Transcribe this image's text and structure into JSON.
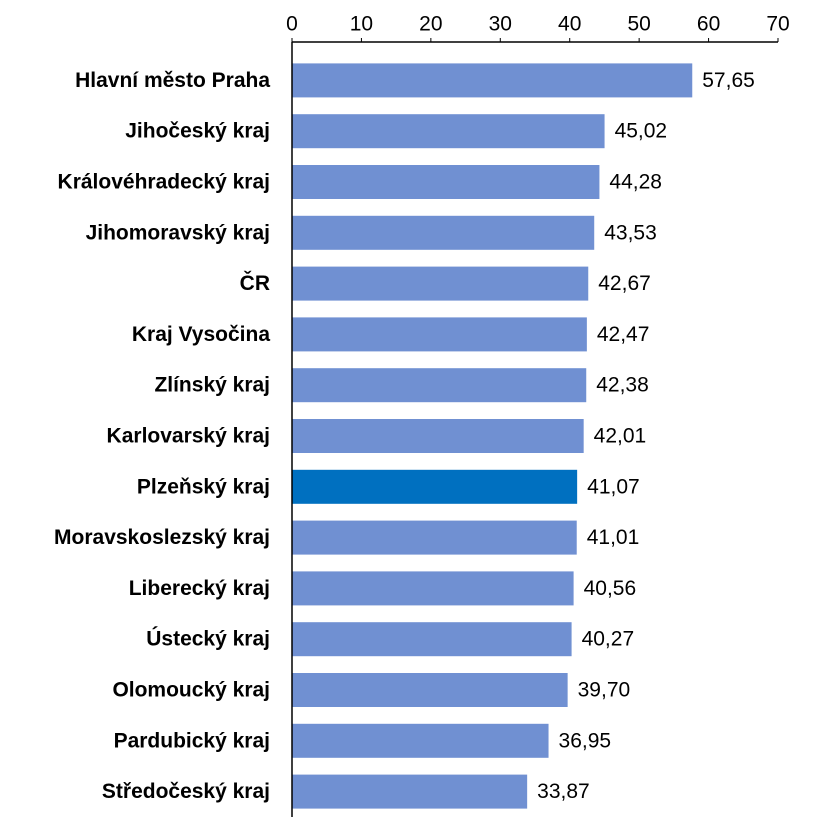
{
  "chart_data": {
    "type": "hbar",
    "categories": [
      "Hlavní město Praha",
      "Jihočeský kraj",
      "Královéhradecký kraj",
      "Jihomoravský kraj",
      "ČR",
      "Kraj Vysočina",
      "Zlínský kraj",
      "Karlovarský kraj",
      "Plzeňský kraj",
      "Moravskoslezský kraj",
      "Liberecký kraj",
      "Ústecký kraj",
      "Olomoucký kraj",
      "Pardubický kraj",
      "Středočeský kraj"
    ],
    "values": [
      57.65,
      45.02,
      44.28,
      43.53,
      42.67,
      42.47,
      42.38,
      42.01,
      41.07,
      41.01,
      40.56,
      40.27,
      39.7,
      36.95,
      33.87
    ],
    "value_labels": [
      "57,65",
      "45,02",
      "44,28",
      "43,53",
      "42,67",
      "42,47",
      "42,38",
      "42,01",
      "41,07",
      "41,01",
      "40,56",
      "40,27",
      "39,70",
      "36,95",
      "33,87"
    ],
    "colors": [
      "#7090d2",
      "#7090d2",
      "#7090d2",
      "#7090d2",
      "#7090d2",
      "#7090d2",
      "#7090d2",
      "#7090d2",
      "#0070c0",
      "#7090d2",
      "#7090d2",
      "#7090d2",
      "#7090d2",
      "#7090d2",
      "#7090d2"
    ],
    "xlim": [
      0,
      70
    ],
    "xticks": [
      0,
      10,
      20,
      30,
      40,
      50,
      60,
      70
    ],
    "x_axis_position": "top"
  }
}
